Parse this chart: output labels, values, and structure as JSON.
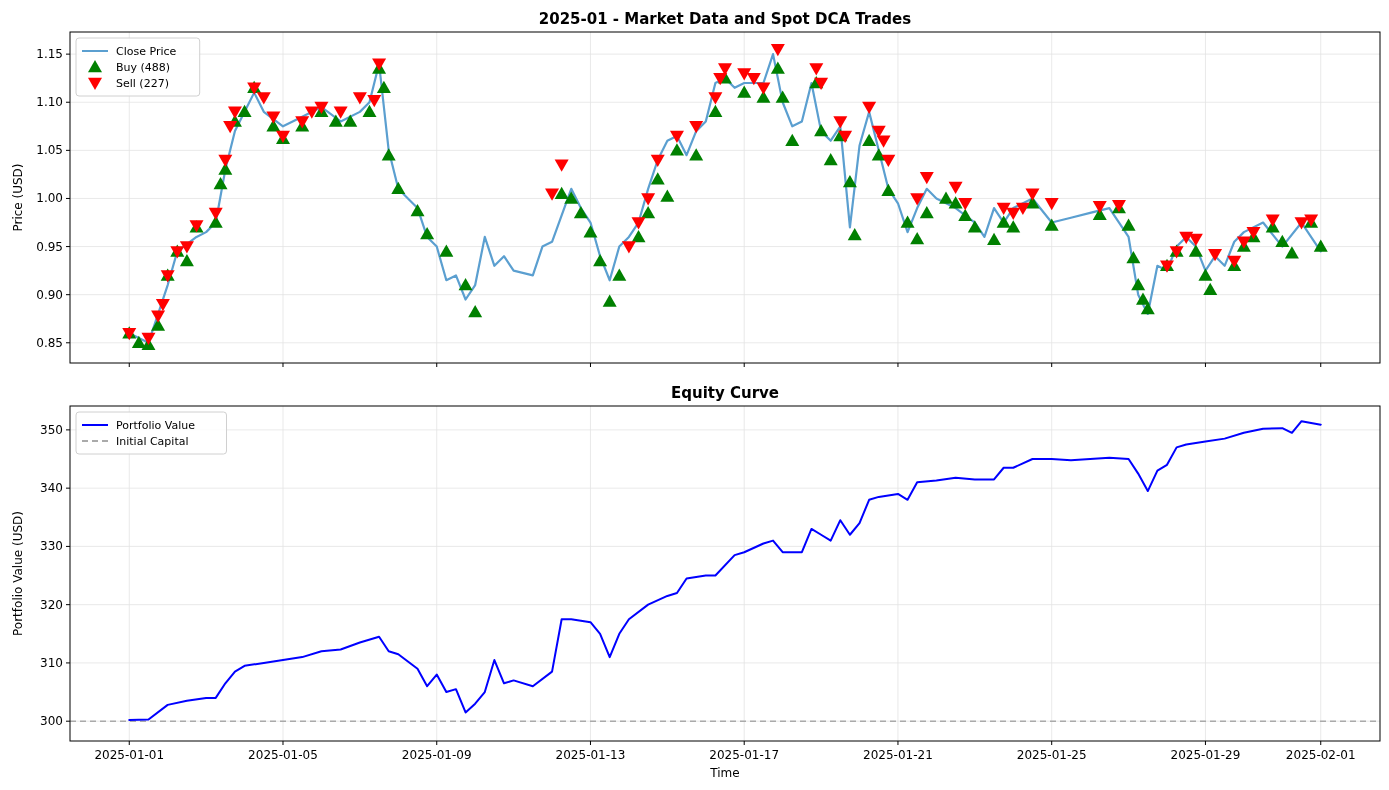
{
  "chart_data": [
    {
      "type": "line",
      "title": "2025-01 - Market Data and Spot DCA Trades",
      "ylabel": "Price (USD)",
      "xlim": [
        "2024-12-30T11:00",
        "2025-02-02T13:00"
      ],
      "xticks": [
        "2025-01-01",
        "2025-01-05",
        "2025-01-09",
        "2025-01-13",
        "2025-01-17",
        "2025-01-21",
        "2025-01-25",
        "2025-01-29",
        "2025-02-01"
      ],
      "ylim": [
        0.829,
        1.173
      ],
      "yticks": [
        0.85,
        {
          "value": 0.9,
          "label": "0.90"
        },
        0.95,
        {
          "value": 1.0,
          "label": "1.00"
        },
        1.05,
        {
          "value": 1.1,
          "label": "1.10"
        },
        1.15
      ],
      "tick_labels": "y",
      "grid": true,
      "legend": "top left",
      "series": [
        {
          "name": "Close Price",
          "color": "#5b9fd0",
          "x": [
            "2025-01-01T00:00",
            "2025-01-01T12:00",
            "2025-01-02T00:00",
            "2025-01-02T06:00",
            "2025-01-02T18:00",
            "2025-01-03T00:00",
            "2025-01-03T06:00",
            "2025-01-03T12:00",
            "2025-01-03T18:00",
            "2025-01-04T00:00",
            "2025-01-04T06:00",
            "2025-01-04T12:00",
            "2025-01-05T00:00",
            "2025-01-05T12:00",
            "2025-01-06T00:00",
            "2025-01-06T12:00",
            "2025-01-07T00:00",
            "2025-01-07T06:00",
            "2025-01-07T12:00",
            "2025-01-07T18:00",
            "2025-01-08T00:00",
            "2025-01-08T06:00",
            "2025-01-08T12:00",
            "2025-01-08T18:00",
            "2025-01-09T00:00",
            "2025-01-09T06:00",
            "2025-01-09T12:00",
            "2025-01-09T18:00",
            "2025-01-10T00:00",
            "2025-01-10T06:00",
            "2025-01-10T12:00",
            "2025-01-10T18:00",
            "2025-01-11T00:00",
            "2025-01-11T12:00",
            "2025-01-11T18:00",
            "2025-01-12T00:00",
            "2025-01-12T12:00",
            "2025-01-12T18:00",
            "2025-01-13T00:00",
            "2025-01-13T06:00",
            "2025-01-13T12:00",
            "2025-01-13T18:00",
            "2025-01-14T00:00",
            "2025-01-14T06:00",
            "2025-01-14T12:00",
            "2025-01-14T18:00",
            "2025-01-15T00:00",
            "2025-01-15T06:00",
            "2025-01-15T12:00",
            "2025-01-15T18:00",
            "2025-01-16T00:00",
            "2025-01-16T06:00",
            "2025-01-16T12:00",
            "2025-01-16T18:00",
            "2025-01-17T00:00",
            "2025-01-17T12:00",
            "2025-01-17T18:00",
            "2025-01-18T00:00",
            "2025-01-18T06:00",
            "2025-01-18T12:00",
            "2025-01-18T18:00",
            "2025-01-19T00:00",
            "2025-01-19T06:00",
            "2025-01-19T12:00",
            "2025-01-19T18:00",
            "2025-01-20T00:00",
            "2025-01-20T06:00",
            "2025-01-20T12:00",
            "2025-01-20T18:00",
            "2025-01-21T00:00",
            "2025-01-21T06:00",
            "2025-01-21T12:00",
            "2025-01-21T18:00",
            "2025-01-22T00:00",
            "2025-01-22T12:00",
            "2025-01-23T00:00",
            "2025-01-23T06:00",
            "2025-01-23T12:00",
            "2025-01-23T18:00",
            "2025-01-24T00:00",
            "2025-01-24T12:00",
            "2025-01-25T00:00",
            "2025-01-25T12:00",
            "2025-01-26T00:00",
            "2025-01-26T12:00",
            "2025-01-27T00:00",
            "2025-01-27T06:00",
            "2025-01-27T12:00",
            "2025-01-27T18:00",
            "2025-01-28T00:00",
            "2025-01-28T06:00",
            "2025-01-28T12:00",
            "2025-01-28T18:00",
            "2025-01-29T00:00",
            "2025-01-29T06:00",
            "2025-01-29T12:00",
            "2025-01-29T18:00",
            "2025-01-30T00:00",
            "2025-01-30T12:00",
            "2025-01-31T00:00",
            "2025-01-31T12:00",
            "2025-02-01T00:00"
          ],
          "values": [
            0.86,
            0.85,
            0.91,
            0.945,
            0.96,
            0.965,
            0.975,
            1.03,
            1.07,
            1.09,
            1.11,
            1.09,
            1.075,
            1.085,
            1.095,
            1.08,
            1.09,
            1.1,
            1.14,
            1.05,
            1.01,
            1.0,
            0.99,
            0.96,
            0.95,
            0.915,
            0.92,
            0.895,
            0.91,
            0.96,
            0.93,
            0.94,
            0.925,
            0.92,
            0.95,
            0.955,
            1.01,
            0.99,
            0.975,
            0.94,
            0.915,
            0.95,
            0.96,
            0.975,
            1.01,
            1.04,
            1.06,
            1.065,
            1.045,
            1.07,
            1.08,
            1.12,
            1.125,
            1.115,
            1.12,
            1.12,
            1.15,
            1.1,
            1.075,
            1.08,
            1.12,
            1.07,
            1.06,
            1.075,
            0.97,
            1.055,
            1.09,
            1.05,
            1.01,
            0.995,
            0.965,
            0.99,
            1.01,
            1.0,
            0.99,
            0.975,
            0.96,
            0.99,
            0.975,
            0.99,
            1.0,
            0.975,
            0.98,
            0.985,
            0.99,
            0.96,
            0.9,
            0.88,
            0.93,
            0.925,
            0.95,
            0.96,
            0.95,
            0.925,
            0.94,
            0.93,
            0.955,
            0.965,
            0.975,
            0.95,
            0.975,
            0.945
          ]
        },
        {
          "name": "Buy (488)",
          "type": "scatter",
          "marker": "triangle",
          "color": "#008000",
          "x": [
            "2025-01-01T00:00",
            "2025-01-01T06:00",
            "2025-01-01T12:00",
            "2025-01-01T18:00",
            "2025-01-02T00:00",
            "2025-01-02T06:00",
            "2025-01-02T12:00",
            "2025-01-02T18:00",
            "2025-01-03T06:00",
            "2025-01-03T09:00",
            "2025-01-03T12:00",
            "2025-01-03T18:00",
            "2025-01-04T00:00",
            "2025-01-04T06:00",
            "2025-01-04T18:00",
            "2025-01-05T00:00",
            "2025-01-05T12:00",
            "2025-01-06T00:00",
            "2025-01-06T09:00",
            "2025-01-06T18:00",
            "2025-01-07T06:00",
            "2025-01-07T12:00",
            "2025-01-07T15:00",
            "2025-01-07T18:00",
            "2025-01-08T00:00",
            "2025-01-08T12:00",
            "2025-01-08T18:00",
            "2025-01-09T06:00",
            "2025-01-09T18:00",
            "2025-01-10T00:00",
            "2025-01-12T06:00",
            "2025-01-12T12:00",
            "2025-01-12T18:00",
            "2025-01-13T00:00",
            "2025-01-13T06:00",
            "2025-01-13T12:00",
            "2025-01-13T18:00",
            "2025-01-14T06:00",
            "2025-01-14T12:00",
            "2025-01-14T18:00",
            "2025-01-15T00:00",
            "2025-01-15T06:00",
            "2025-01-15T18:00",
            "2025-01-16T06:00",
            "2025-01-16T12:00",
            "2025-01-17T00:00",
            "2025-01-17T12:00",
            "2025-01-17T21:00",
            "2025-01-18T00:00",
            "2025-01-18T06:00",
            "2025-01-18T21:00",
            "2025-01-19T00:00",
            "2025-01-19T06:00",
            "2025-01-19T12:00",
            "2025-01-19T18:00",
            "2025-01-19T21:00",
            "2025-01-20T06:00",
            "2025-01-20T12:00",
            "2025-01-20T18:00",
            "2025-01-21T06:00",
            "2025-01-21T12:00",
            "2025-01-21T18:00",
            "2025-01-22T06:00",
            "2025-01-22T12:00",
            "2025-01-22T18:00",
            "2025-01-23T00:00",
            "2025-01-23T12:00",
            "2025-01-23T18:00",
            "2025-01-24T00:00",
            "2025-01-24T12:00",
            "2025-01-25T00:00",
            "2025-01-26T06:00",
            "2025-01-26T18:00",
            "2025-01-27T00:00",
            "2025-01-27T03:00",
            "2025-01-27T06:00",
            "2025-01-27T09:00",
            "2025-01-27T12:00",
            "2025-01-28T00:00",
            "2025-01-28T06:00",
            "2025-01-28T18:00",
            "2025-01-29T00:00",
            "2025-01-29T03:00",
            "2025-01-29T18:00",
            "2025-01-30T00:00",
            "2025-01-30T06:00",
            "2025-01-30T18:00",
            "2025-01-31T00:00",
            "2025-01-31T06:00",
            "2025-01-31T18:00",
            "2025-02-01T00:00"
          ],
          "values": [
            0.86,
            0.85,
            0.848,
            0.868,
            0.92,
            0.945,
            0.935,
            0.97,
            0.975,
            1.015,
            1.03,
            1.08,
            1.09,
            1.115,
            1.075,
            1.062,
            1.075,
            1.09,
            1.08,
            1.08,
            1.09,
            1.135,
            1.115,
            1.045,
            1.01,
            0.987,
            0.963,
            0.945,
            0.91,
            0.882,
            1.005,
            1.0,
            0.985,
            0.965,
            0.935,
            0.893,
            0.92,
            0.96,
            0.985,
            1.02,
            1.002,
            1.05,
            1.045,
            1.09,
            1.125,
            1.11,
            1.105,
            1.135,
            1.105,
            1.06,
            1.12,
            1.07,
            1.04,
            1.065,
            1.017,
            0.962,
            1.06,
            1.045,
            1.008,
            0.975,
            0.958,
            0.985,
            1.0,
            0.995,
            0.982,
            0.97,
            0.957,
            0.975,
            0.97,
            0.995,
            0.972,
            0.983,
            0.99,
            0.972,
            0.938,
            0.91,
            0.895,
            0.885,
            0.93,
            0.945,
            0.945,
            0.92,
            0.905,
            0.93,
            0.95,
            0.96,
            0.97,
            0.955,
            0.943,
            0.975,
            0.95
          ]
        },
        {
          "name": "Sell (227)",
          "type": "scatter",
          "marker": "triangle-down",
          "color": "#ff0000",
          "x": [
            "2025-01-01T00:00",
            "2025-01-01T12:00",
            "2025-01-01T18:00",
            "2025-01-01T21:00",
            "2025-01-02T00:00",
            "2025-01-02T06:00",
            "2025-01-02T12:00",
            "2025-01-02T18:00",
            "2025-01-03T06:00",
            "2025-01-03T12:00",
            "2025-01-03T15:00",
            "2025-01-03T18:00",
            "2025-01-04T06:00",
            "2025-01-04T12:00",
            "2025-01-04T18:00",
            "2025-01-05T00:00",
            "2025-01-05T12:00",
            "2025-01-05T18:00",
            "2025-01-06T00:00",
            "2025-01-06T12:00",
            "2025-01-07T00:00",
            "2025-01-07T09:00",
            "2025-01-07T12:00",
            "2025-01-12T00:00",
            "2025-01-12T06:00",
            "2025-01-14T00:00",
            "2025-01-14T06:00",
            "2025-01-14T12:00",
            "2025-01-14T18:00",
            "2025-01-15T06:00",
            "2025-01-15T18:00",
            "2025-01-16T06:00",
            "2025-01-16T09:00",
            "2025-01-16T12:00",
            "2025-01-17T00:00",
            "2025-01-17T06:00",
            "2025-01-17T12:00",
            "2025-01-17T21:00",
            "2025-01-18T21:00",
            "2025-01-19T00:00",
            "2025-01-19T12:00",
            "2025-01-19T15:00",
            "2025-01-20T06:00",
            "2025-01-20T12:00",
            "2025-01-20T15:00",
            "2025-01-20T18:00",
            "2025-01-21T12:00",
            "2025-01-21T18:00",
            "2025-01-22T12:00",
            "2025-01-22T18:00",
            "2025-01-23T18:00",
            "2025-01-24T00:00",
            "2025-01-24T06:00",
            "2025-01-24T12:00",
            "2025-01-25T00:00",
            "2025-01-26T06:00",
            "2025-01-26T18:00",
            "2025-01-28T00:00",
            "2025-01-28T06:00",
            "2025-01-28T12:00",
            "2025-01-28T18:00",
            "2025-01-29T06:00",
            "2025-01-29T18:00",
            "2025-01-30T00:00",
            "2025-01-30T06:00",
            "2025-01-30T18:00",
            "2025-01-31T12:00",
            "2025-01-31T18:00"
          ],
          "values": [
            0.86,
            0.855,
            0.878,
            0.89,
            0.92,
            0.945,
            0.95,
            0.972,
            0.985,
            1.04,
            1.075,
            1.09,
            1.115,
            1.105,
            1.085,
            1.065,
            1.08,
            1.09,
            1.095,
            1.09,
            1.105,
            1.102,
            1.14,
            1.005,
            1.035,
            0.95,
            0.975,
            1.0,
            1.04,
            1.065,
            1.075,
            1.105,
            1.125,
            1.135,
            1.13,
            1.125,
            1.115,
            1.155,
            1.135,
            1.12,
            1.08,
            1.065,
            1.095,
            1.07,
            1.06,
            1.04,
            1.0,
            1.022,
            1.012,
            0.995,
            0.99,
            0.985,
            0.99,
            1.005,
            0.995,
            0.992,
            0.993,
            0.93,
            0.945,
            0.96,
            0.958,
            0.942,
            0.935,
            0.955,
            0.965,
            0.978,
            0.975,
            0.978
          ]
        }
      ]
    },
    {
      "type": "line",
      "title": "Equity Curve",
      "xlabel": "Time",
      "ylabel": "Portfolio Value (USD)",
      "xlim": [
        "2024-12-30T11:00",
        "2025-02-02T13:00"
      ],
      "xticks": [
        "2025-01-01",
        "2025-01-05",
        "2025-01-09",
        "2025-01-13",
        "2025-01-17",
        "2025-01-21",
        "2025-01-25",
        "2025-01-29",
        "2025-02-01"
      ],
      "ylim": [
        296.6,
        354.1
      ],
      "yticks": [
        300,
        310,
        320,
        330,
        340,
        350
      ],
      "grid": true,
      "legend": "top left",
      "series": [
        {
          "name": "Portfolio Value",
          "color": "#0000ff",
          "x": [
            "2025-01-01T00:00",
            "2025-01-01T12:00",
            "2025-01-02T00:00",
            "2025-01-02T12:00",
            "2025-01-03T00:00",
            "2025-01-03T06:00",
            "2025-01-03T12:00",
            "2025-01-03T18:00",
            "2025-01-04T00:00",
            "2025-01-04T12:00",
            "2025-01-05T00:00",
            "2025-01-05T12:00",
            "2025-01-06T00:00",
            "2025-01-06T12:00",
            "2025-01-07T00:00",
            "2025-01-07T12:00",
            "2025-01-07T18:00",
            "2025-01-08T00:00",
            "2025-01-08T12:00",
            "2025-01-08T18:00",
            "2025-01-09T00:00",
            "2025-01-09T06:00",
            "2025-01-09T12:00",
            "2025-01-09T18:00",
            "2025-01-10T00:00",
            "2025-01-10T06:00",
            "2025-01-10T12:00",
            "2025-01-10T18:00",
            "2025-01-11T00:00",
            "2025-01-11T12:00",
            "2025-01-12T00:00",
            "2025-01-12T06:00",
            "2025-01-12T12:00",
            "2025-01-13T00:00",
            "2025-01-13T06:00",
            "2025-01-13T12:00",
            "2025-01-13T18:00",
            "2025-01-14T00:00",
            "2025-01-14T12:00",
            "2025-01-15T00:00",
            "2025-01-15T06:00",
            "2025-01-15T12:00",
            "2025-01-16T00:00",
            "2025-01-16T06:00",
            "2025-01-16T18:00",
            "2025-01-17T00:00",
            "2025-01-17T12:00",
            "2025-01-17T18:00",
            "2025-01-18T00:00",
            "2025-01-18T12:00",
            "2025-01-18T18:00",
            "2025-01-19T00:00",
            "2025-01-19T06:00",
            "2025-01-19T12:00",
            "2025-01-19T18:00",
            "2025-01-20T00:00",
            "2025-01-20T06:00",
            "2025-01-20T12:00",
            "2025-01-21T00:00",
            "2025-01-21T06:00",
            "2025-01-21T12:00",
            "2025-01-22T00:00",
            "2025-01-22T12:00",
            "2025-01-23T00:00",
            "2025-01-23T12:00",
            "2025-01-23T18:00",
            "2025-01-24T00:00",
            "2025-01-24T12:00",
            "2025-01-25T00:00",
            "2025-01-25T12:00",
            "2025-01-26T00:00",
            "2025-01-26T12:00",
            "2025-01-27T00:00",
            "2025-01-27T06:00",
            "2025-01-27T12:00",
            "2025-01-27T18:00",
            "2025-01-28T00:00",
            "2025-01-28T06:00",
            "2025-01-28T12:00",
            "2025-01-29T00:00",
            "2025-01-29T12:00",
            "2025-01-30T00:00",
            "2025-01-30T12:00",
            "2025-01-31T00:00",
            "2025-01-31T06:00",
            "2025-01-31T12:00",
            "2025-02-01T00:00"
          ],
          "values": [
            300.2,
            300.3,
            302.8,
            303.5,
            304,
            304,
            306.5,
            308.5,
            309.5,
            310,
            310.5,
            311,
            312,
            312.3,
            313.5,
            314.5,
            312,
            311.5,
            309,
            306,
            308,
            305,
            305.5,
            301.5,
            303,
            305,
            310.5,
            306.5,
            307,
            306,
            308.5,
            317.5,
            317.5,
            317,
            315,
            311,
            315,
            317.5,
            320,
            321.5,
            322,
            324.5,
            325,
            325,
            328.5,
            329,
            330.5,
            331,
            329,
            329,
            333,
            332,
            331,
            334.5,
            332,
            334,
            338,
            338.5,
            339,
            338,
            341,
            341.3,
            341.8,
            341.5,
            341.5,
            343.5,
            343.5,
            345,
            345,
            344.8,
            345,
            345.2,
            345,
            342.5,
            339.5,
            343,
            344,
            347,
            347.5,
            348,
            348.5,
            349.5,
            350.2,
            350.3,
            349.5,
            351.5,
            350.9
          ]
        }
      ],
      "ref_lines": [
        {
          "axis": "y",
          "value": 300,
          "label": "Initial Capital",
          "color": "#aaaaaa",
          "line_style": "dashed"
        }
      ]
    }
  ]
}
